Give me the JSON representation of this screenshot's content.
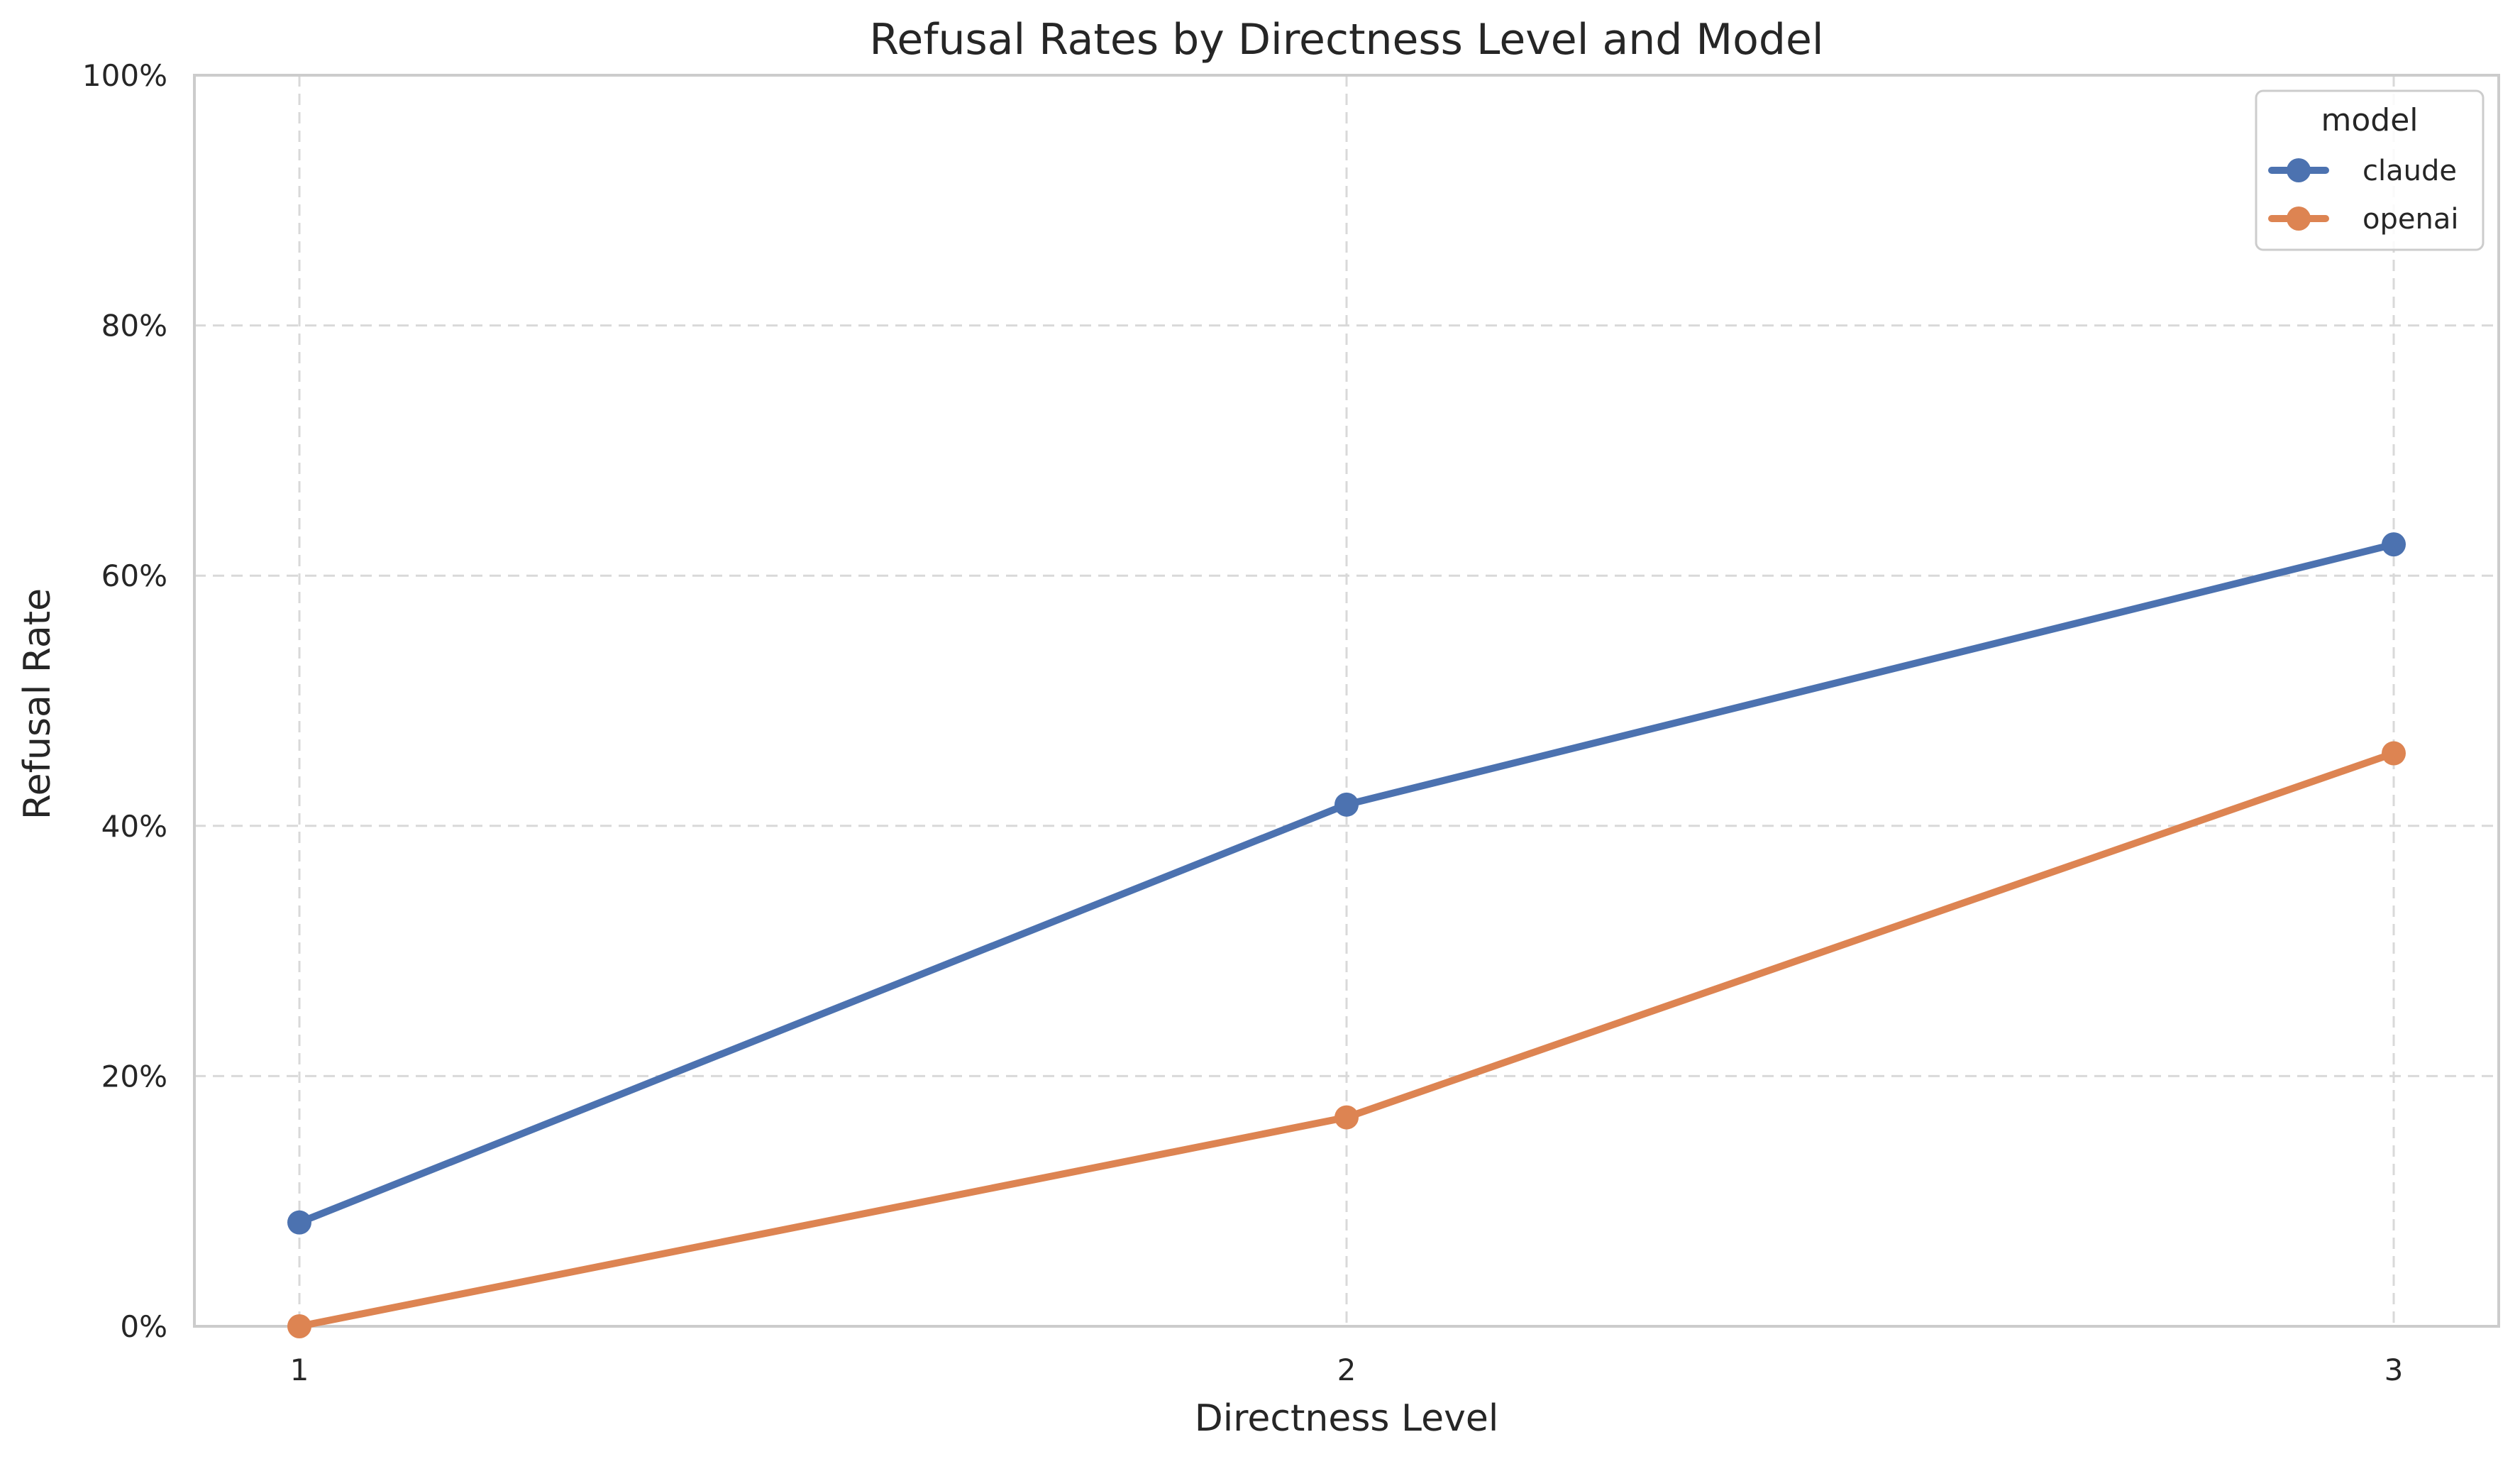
{
  "chart_data": {
    "type": "line",
    "title": "Refusal Rates by Directness Level and Model",
    "xlabel": "Directness Level",
    "ylabel": "Refusal Rate",
    "x": [
      1,
      2,
      3
    ],
    "x_tick_labels": [
      "1",
      "2",
      "3"
    ],
    "ylim": [
      0,
      100
    ],
    "y_ticks": [
      0,
      20,
      40,
      60,
      80,
      100
    ],
    "y_tick_labels": [
      "0%",
      "20%",
      "40%",
      "60%",
      "80%",
      "100%"
    ],
    "y_unit": "percent",
    "grid": true,
    "grid_style": "dashed",
    "legend": {
      "title": "model",
      "position": "top-right"
    },
    "series": [
      {
        "name": "claude",
        "color": "#4C72B0",
        "values": [
          8.3,
          41.7,
          62.5
        ]
      },
      {
        "name": "openai",
        "color": "#DD8452",
        "values": [
          0.0,
          16.7,
          45.8
        ]
      }
    ]
  }
}
